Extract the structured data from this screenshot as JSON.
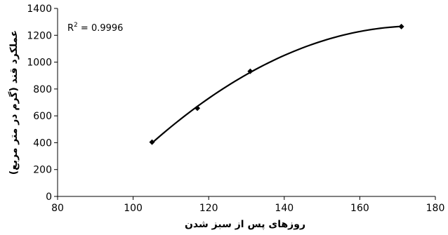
{
  "chart_data": {
    "type": "scatter",
    "xlabel": "روزهای پس از سبز شدن",
    "ylabel": "عملکرد قند (گرم در متر مربع)",
    "xlim": [
      80,
      180
    ],
    "ylim": [
      0,
      1400
    ],
    "xticks": [
      "80",
      "100",
      "120",
      "140",
      "160",
      "180"
    ],
    "yticks": [
      "0",
      "200",
      "400",
      "600",
      "800",
      "1000",
      "1200",
      "1400"
    ],
    "grid": false,
    "series": [
      {
        "x": [
          105,
          117,
          131,
          171
        ],
        "y": [
          404,
          657,
          932,
          1265
        ]
      }
    ],
    "trendline": {
      "type": "polynomial",
      "r2_label": "R",
      "r2_sup": "2",
      "r2_value": " = 0.9996"
    }
  }
}
